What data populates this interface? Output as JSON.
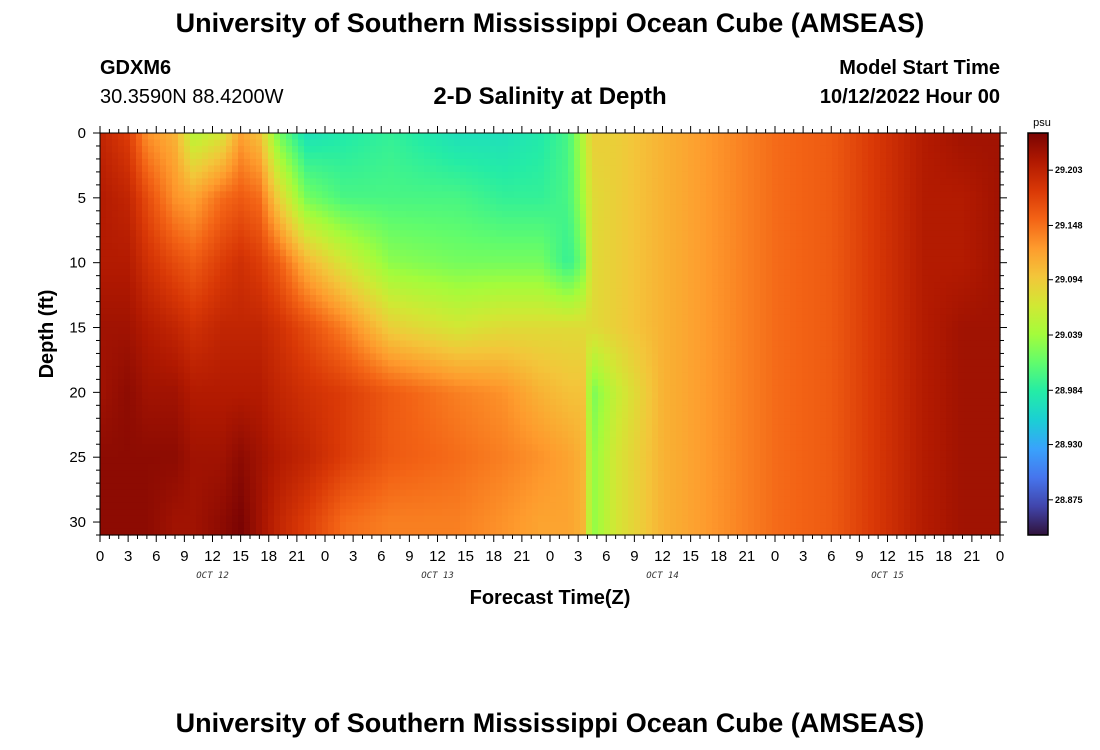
{
  "header": {
    "title": "University of Southern Mississippi Ocean Cube (AMSEAS)",
    "station": "GDXM6",
    "coords": "30.3590N  88.4200W",
    "plot_title": "2-D Salinity at Depth",
    "start_label": "Model Start Time",
    "start_value": "10/12/2022 Hour 00"
  },
  "footer": {
    "title": "University of Southern Mississippi Ocean Cube (AMSEAS)"
  },
  "chart_data": {
    "type": "heatmap",
    "title": "2-D Salinity at Depth",
    "xlabel": "Forecast Time(Z)",
    "ylabel": "Depth (ft)",
    "x_tick_labels": [
      "0",
      "3",
      "6",
      "9",
      "12",
      "15",
      "18",
      "21",
      "0",
      "3",
      "6",
      "9",
      "12",
      "15",
      "18",
      "21",
      "0",
      "3",
      "6",
      "9",
      "12",
      "15",
      "18",
      "21",
      "0",
      "3",
      "6",
      "9",
      "12",
      "15",
      "18",
      "21",
      "0"
    ],
    "date_labels": [
      "OCT 12",
      "OCT 13",
      "OCT 14",
      "OCT 15"
    ],
    "x_range_hours": [
      0,
      96
    ],
    "y_ticks": [
      0,
      5,
      10,
      15,
      20,
      25,
      30
    ],
    "y_range_ft": [
      0,
      31
    ],
    "y_inverted": true,
    "colorbar_unit": "psu",
    "colorbar_ticks": [
      29.203,
      29.148,
      29.094,
      29.039,
      28.984,
      28.93,
      28.875
    ],
    "colorbar_range": [
      28.84,
      29.24
    ],
    "colormap": [
      "#30123b",
      "#4145ab",
      "#4675ed",
      "#39a2fc",
      "#1bcfd4",
      "#24eca6",
      "#61fc6c",
      "#a4fc3b",
      "#d1e834",
      "#f3c63a",
      "#fe9b2d",
      "#f36315",
      "#d93806",
      "#b11901",
      "#7a0403"
    ],
    "depth_profiles_ft": [
      0,
      5,
      10,
      15,
      20,
      25,
      30
    ],
    "grid": false
  }
}
